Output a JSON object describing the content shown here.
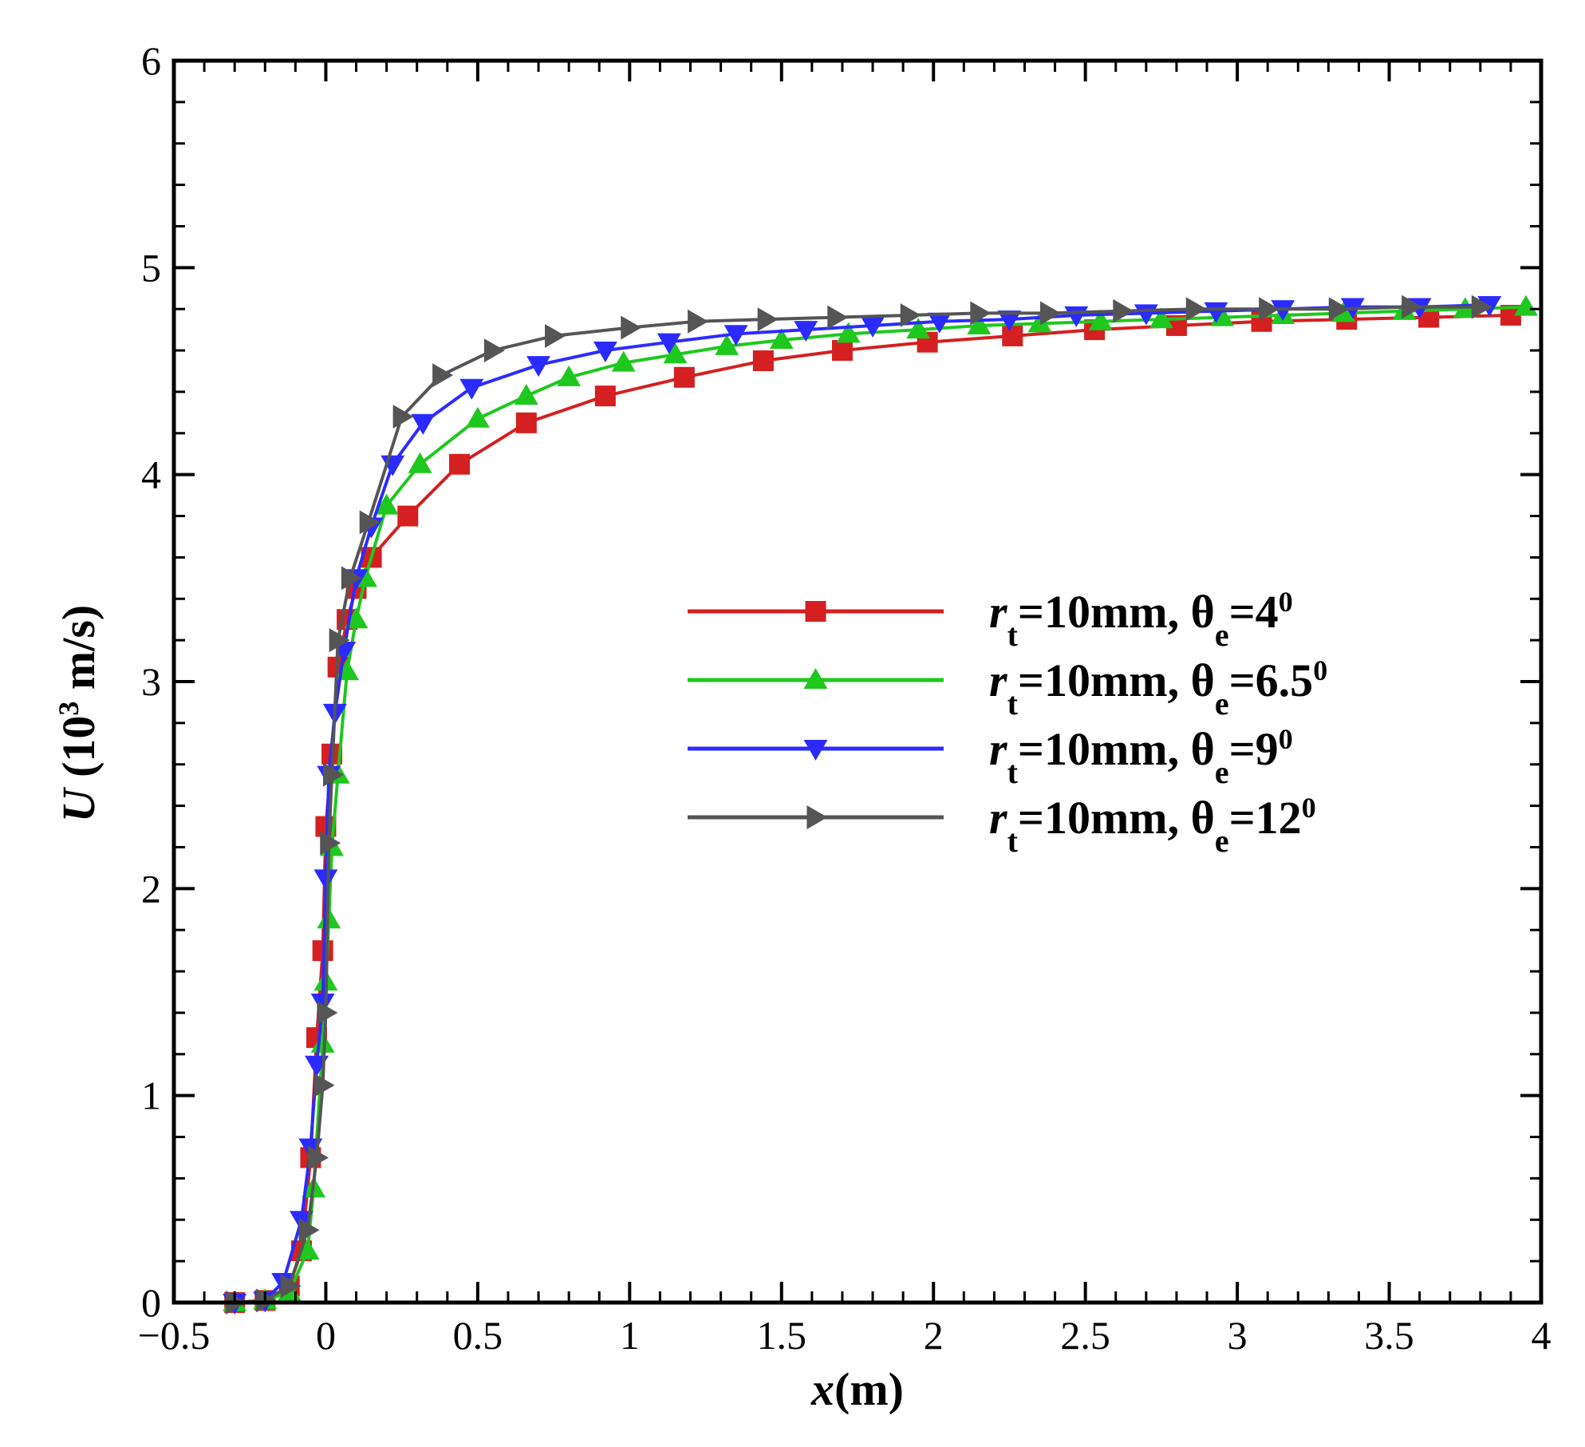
{
  "chart_data": {
    "type": "line",
    "title": "",
    "xlabel": "x(m)",
    "ylabel": "U (10³ m/s)",
    "xlim": [
      -0.5,
      4
    ],
    "ylim": [
      0,
      6
    ],
    "x_ticks": [
      -0.5,
      0,
      0.5,
      1,
      1.5,
      2,
      2.5,
      3,
      3.5,
      4
    ],
    "x_tick_labels": [
      "−0.5",
      "0",
      "0.5",
      "1",
      "1.5",
      "2",
      "2.5",
      "3",
      "3.5",
      "4"
    ],
    "y_ticks": [
      0,
      1,
      2,
      3,
      4,
      5,
      6
    ],
    "y_tick_labels": [
      "0",
      "1",
      "2",
      "3",
      "4",
      "5",
      "6"
    ],
    "grid": false,
    "legend_position": "center-right",
    "series": [
      {
        "name": "rt=10mm, θe=4°",
        "legend_parts": {
          "r": "r",
          "r_sub": "t",
          "mid": "=10mm,  θ",
          "theta_sub": "e",
          "eq": "=4",
          "sup": "0"
        },
        "color": "#d42020",
        "marker": "square",
        "x": [
          -0.3,
          -0.2,
          -0.12,
          -0.08,
          -0.05,
          -0.03,
          -0.01,
          0.0,
          0.02,
          0.04,
          0.07,
          0.1,
          0.15,
          0.27,
          0.44,
          0.66,
          0.92,
          1.18,
          1.44,
          1.7,
          1.98,
          2.26,
          2.53,
          2.8,
          3.08,
          3.36,
          3.63,
          3.9
        ],
        "y": [
          0.0,
          0.01,
          0.08,
          0.25,
          0.7,
          1.28,
          1.7,
          2.3,
          2.65,
          3.07,
          3.3,
          3.45,
          3.6,
          3.8,
          4.05,
          4.25,
          4.38,
          4.47,
          4.55,
          4.6,
          4.64,
          4.67,
          4.7,
          4.72,
          4.74,
          4.75,
          4.76,
          4.77
        ]
      },
      {
        "name": "rt=10mm, θe=6.5°",
        "legend_parts": {
          "r": "r",
          "r_sub": "t",
          "mid": "=10mm,  θ",
          "theta_sub": "e",
          "eq": "=6.5",
          "sup": "0"
        },
        "color": "#1ec81e",
        "marker": "triangle-up",
        "x": [
          -0.3,
          -0.2,
          -0.12,
          -0.06,
          -0.04,
          -0.01,
          0.0,
          0.01,
          0.02,
          0.04,
          0.07,
          0.1,
          0.13,
          0.2,
          0.31,
          0.5,
          0.66,
          0.8,
          0.98,
          1.15,
          1.32,
          1.5,
          1.72,
          1.95,
          2.15,
          2.35,
          2.55,
          2.75,
          2.95,
          3.15,
          3.35,
          3.55,
          3.75,
          3.95
        ],
        "y": [
          0.0,
          0.01,
          0.05,
          0.25,
          0.55,
          1.25,
          1.55,
          1.85,
          2.2,
          2.55,
          3.05,
          3.3,
          3.5,
          3.85,
          4.05,
          4.27,
          4.38,
          4.47,
          4.54,
          4.58,
          4.62,
          4.65,
          4.68,
          4.7,
          4.72,
          4.73,
          4.74,
          4.75,
          4.76,
          4.77,
          4.78,
          4.79,
          4.8,
          4.81
        ]
      },
      {
        "name": "rt=10mm, θe=9°",
        "legend_parts": {
          "r": "r",
          "r_sub": "t",
          "mid": "=10mm,  θ",
          "theta_sub": "e",
          "eq": "=9",
          "sup": "0"
        },
        "color": "#2b2bff",
        "marker": "triangle-down",
        "x": [
          -0.3,
          -0.2,
          -0.14,
          -0.08,
          -0.05,
          -0.03,
          -0.01,
          0.0,
          0.01,
          0.03,
          0.06,
          0.1,
          0.15,
          0.22,
          0.32,
          0.48,
          0.7,
          0.92,
          1.13,
          1.35,
          1.58,
          1.8,
          2.02,
          2.25,
          2.47,
          2.7,
          2.93,
          3.15,
          3.38,
          3.6,
          3.83
        ],
        "y": [
          0.0,
          0.01,
          0.1,
          0.4,
          0.75,
          1.15,
          1.45,
          2.05,
          2.55,
          2.85,
          3.15,
          3.5,
          3.75,
          4.05,
          4.25,
          4.42,
          4.53,
          4.6,
          4.64,
          4.68,
          4.7,
          4.72,
          4.74,
          4.75,
          4.77,
          4.78,
          4.79,
          4.8,
          4.81,
          4.81,
          4.82
        ]
      },
      {
        "name": "rt=10mm, θe=12°",
        "legend_parts": {
          "r": "r",
          "r_sub": "t",
          "mid": "=10mm,  θ",
          "theta_sub": "e",
          "eq": "=12",
          "sup": "0"
        },
        "color": "#555555",
        "marker": "triangle-right",
        "x": [
          -0.3,
          -0.2,
          -0.12,
          -0.06,
          -0.03,
          -0.01,
          0.0,
          0.01,
          0.02,
          0.04,
          0.08,
          0.14,
          0.25,
          0.38,
          0.55,
          0.75,
          1.0,
          1.22,
          1.45,
          1.68,
          1.92,
          2.15,
          2.38,
          2.62,
          2.86,
          3.1,
          3.33,
          3.57,
          3.8
        ],
        "y": [
          0.0,
          0.01,
          0.08,
          0.35,
          0.7,
          1.05,
          1.4,
          2.22,
          2.55,
          3.2,
          3.5,
          3.77,
          4.28,
          4.48,
          4.6,
          4.67,
          4.71,
          4.74,
          4.75,
          4.76,
          4.77,
          4.78,
          4.78,
          4.79,
          4.8,
          4.8,
          4.8,
          4.81,
          4.81
        ]
      }
    ]
  }
}
